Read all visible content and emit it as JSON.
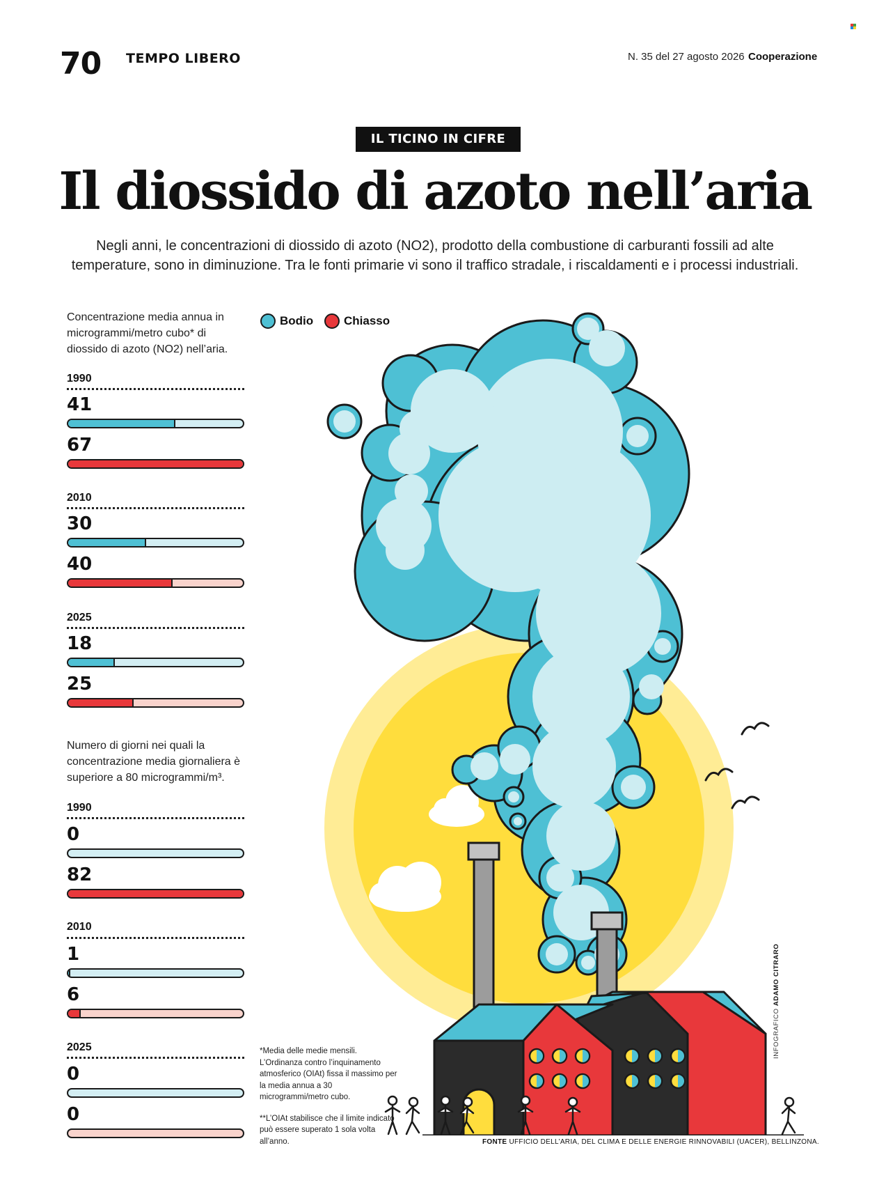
{
  "header": {
    "page_number": "70",
    "section": "TEMPO LIBERO",
    "issue": "N. 35 del 27 agosto 2026",
    "magazine": "Cooperazione"
  },
  "kicker": "IL TICINO IN CIFRE",
  "title": "Il diossido di azoto nell’aria",
  "intro": "Negli anni, le concentrazioni di diossido di azoto (NO2), prodotto della combustione di carburanti fossili ad alte temperature, sono in diminuzione. Tra le fonti primarie vi sono il traffico stradale, i riscaldamenti e i processi industriali.",
  "legend": {
    "bodio": "Bodio",
    "chiasso": "Chiasso"
  },
  "colors": {
    "bodio_fill": "#4EC0D4",
    "bodio_track": "#D3EEF3",
    "chiasso_fill": "#E8383B",
    "chiasso_track": "#F9D3CC",
    "sun": "#FFDD3D",
    "sun_halo": "#FFEC95",
    "cloud_dark": "#4EC0D4",
    "cloud_light": "#CDEDF2",
    "factory_red": "#E8383B",
    "factory_roof": "#4EC0D4",
    "factory_dark": "#2B2B2B"
  },
  "chart_data": [
    {
      "type": "bar",
      "orientation": "horizontal",
      "description": "Concentrazione media annua in microgrammi/metro cubo* di diossido di azoto (NO2) nell’aria.",
      "categories": [
        "1990",
        "2010",
        "2025"
      ],
      "series": [
        {
          "name": "Bodio",
          "values": [
            41,
            30,
            18
          ]
        },
        {
          "name": "Chiasso",
          "values": [
            67,
            40,
            25
          ]
        }
      ],
      "xlim": [
        0,
        67
      ],
      "labels": [
        "41",
        "67",
        "30",
        "40",
        "18",
        "25"
      ]
    },
    {
      "type": "bar",
      "orientation": "horizontal",
      "description": "Numero di giorni nei quali la concentrazione media giornaliera è superiore a 80 microgrammi/m³.",
      "categories": [
        "1990",
        "2010",
        "2025"
      ],
      "series": [
        {
          "name": "Bodio",
          "values": [
            0,
            1,
            0
          ]
        },
        {
          "name": "Chiasso",
          "values": [
            82,
            6,
            0
          ]
        }
      ],
      "xlim": [
        0,
        82
      ],
      "labels": [
        "0",
        "82",
        "1",
        "6",
        "0",
        "0"
      ]
    }
  ],
  "notes": {
    "note1": "*Media delle medie mensili. L’Ordinanza contro l’inquinamento atmosferico (OIAt) fissa il massimo per la media annua a 30 microgrammi/metro cubo.",
    "note2": "**L’OIAt stabilisce che il limite indicato può essere superato 1 sola volta all’anno."
  },
  "source": {
    "label": "FONTE",
    "text": "UFFICIO DELL’ARIA, DEL CLIMA E DELLE ENERGIE RINNOVABILI (UACER), BELLINZONA."
  },
  "credit": {
    "label": "INFOGRAFICO",
    "name": "ADAMO CITRARO"
  }
}
